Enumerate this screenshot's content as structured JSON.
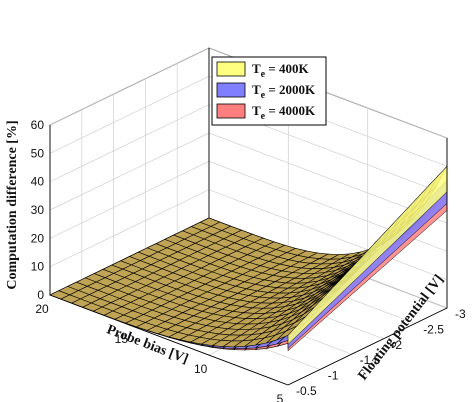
{
  "chart_data": {
    "type": "surface",
    "title": "",
    "xlabel": "Probe bias [V]",
    "ylabel": "Floating potential [V]",
    "zlabel": "Computation difference [%]",
    "x_ticks": [
      "20",
      "15",
      "10",
      "5"
    ],
    "y_ticks": [
      "-0.5",
      "-1",
      "-1.5",
      "-2",
      "-2.5",
      "-3"
    ],
    "z_ticks": [
      "0",
      "10",
      "20",
      "30",
      "40",
      "50",
      "60"
    ],
    "xlim": [
      5,
      20
    ],
    "ylim": [
      -3,
      -0.5
    ],
    "zlim": [
      0,
      60
    ],
    "grid": true,
    "legend_position": "top-right",
    "series": [
      {
        "name": "T",
        "subscript": "e",
        "suffix": " = 400K",
        "color": "#ffff80",
        "peak": 50
      },
      {
        "name": "T",
        "subscript": "e",
        "suffix": " = 2000K",
        "color": "#7f7fff",
        "peak": 45
      },
      {
        "name": "T",
        "subscript": "e",
        "suffix": " = 4000K",
        "color": "#ff7f7f",
        "peak": 42
      }
    ]
  }
}
